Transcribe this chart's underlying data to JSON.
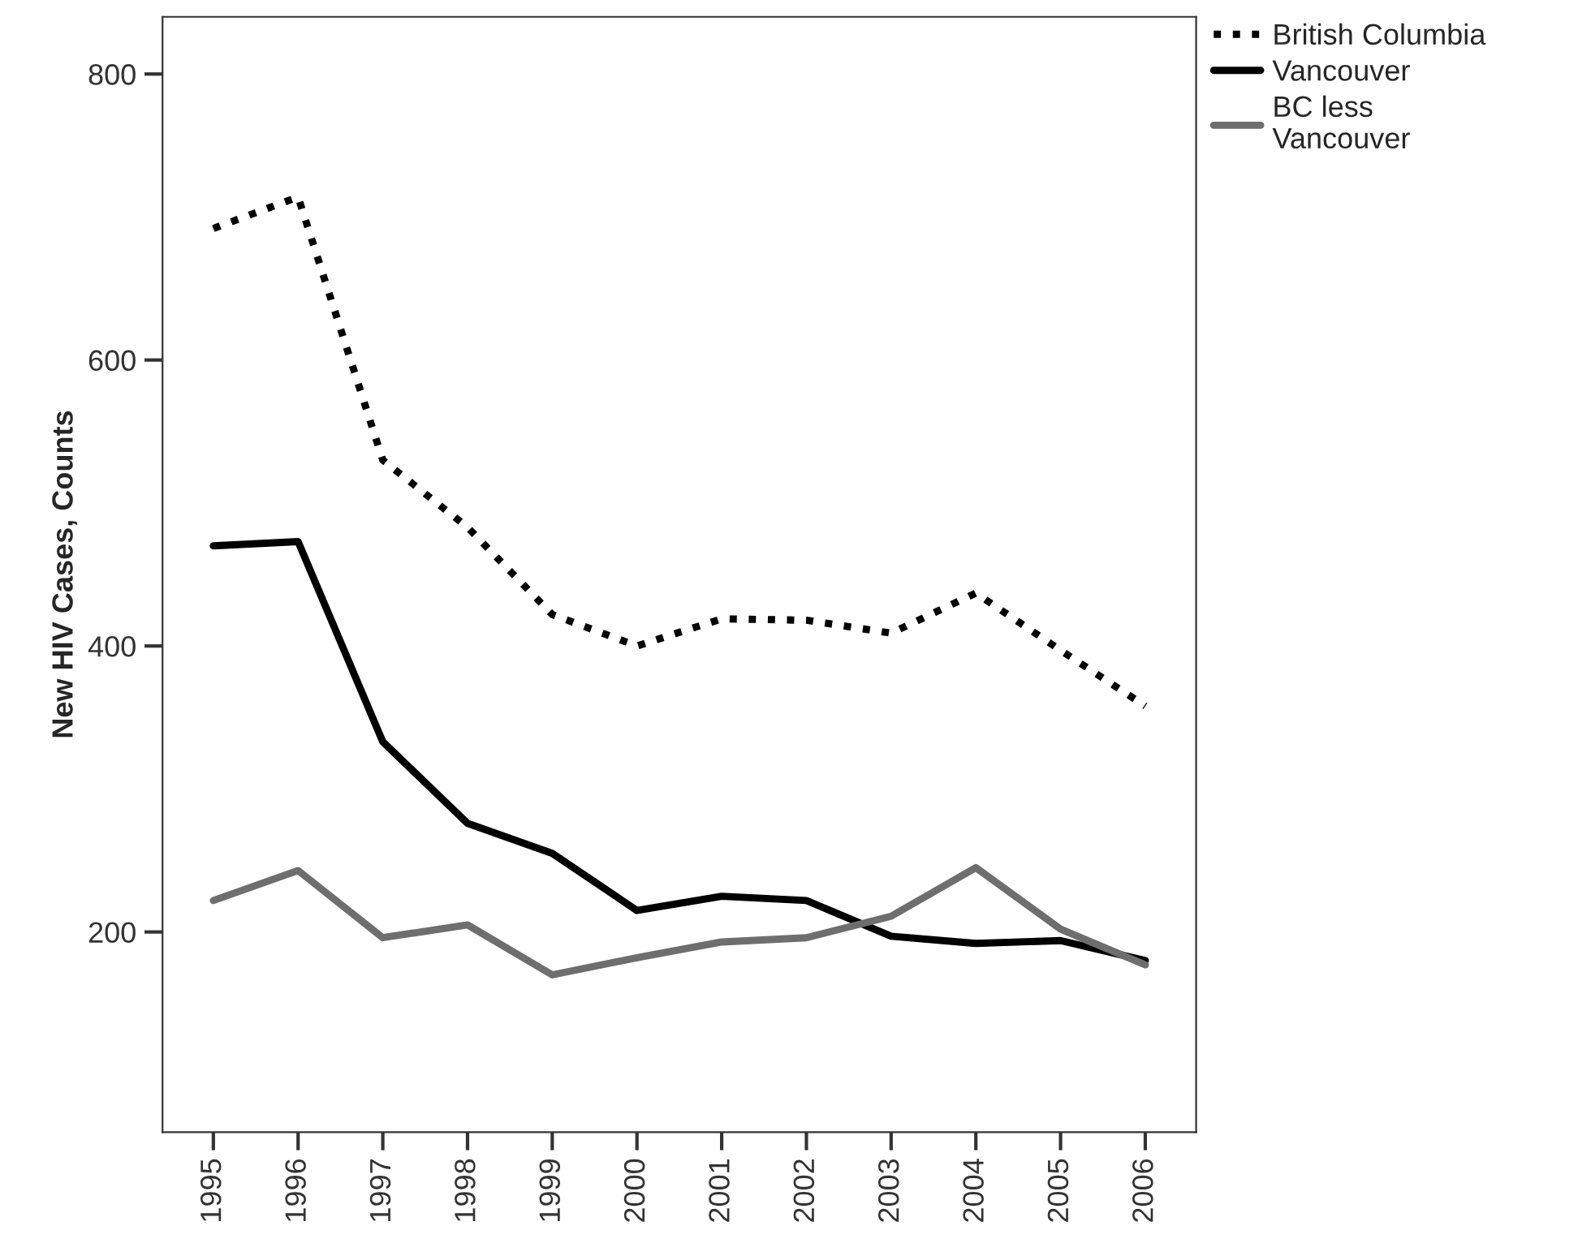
{
  "chart_data": {
    "type": "line",
    "ylabel": "New HIV Cases, Counts",
    "categories": [
      "1995",
      "1996",
      "1997",
      "1998",
      "1999",
      "2000",
      "2001",
      "2002",
      "2003",
      "2004",
      "2005",
      "2006"
    ],
    "series": [
      {
        "name": "British Columbia",
        "color": "#000000",
        "line_style": "dotted",
        "values": [
          692,
          714,
          530,
          483,
          422,
          400,
          419,
          418,
          409,
          437,
          397,
          358
        ]
      },
      {
        "name": "Vancouver",
        "color": "#000000",
        "line_style": "solid",
        "values": [
          470,
          473,
          333,
          276,
          255,
          215,
          225,
          222,
          197,
          192,
          194,
          180
        ]
      },
      {
        "name": "BC less\nVancouver",
        "color": "#6e6e6e",
        "line_style": "solid",
        "values": [
          222,
          243,
          196,
          205,
          170,
          182,
          193,
          196,
          211,
          245,
          202,
          177
        ]
      }
    ],
    "ylim": [
      60,
      840
    ],
    "yticks": [
      200,
      400,
      600,
      800
    ],
    "grid": false,
    "legend": "top right"
  }
}
